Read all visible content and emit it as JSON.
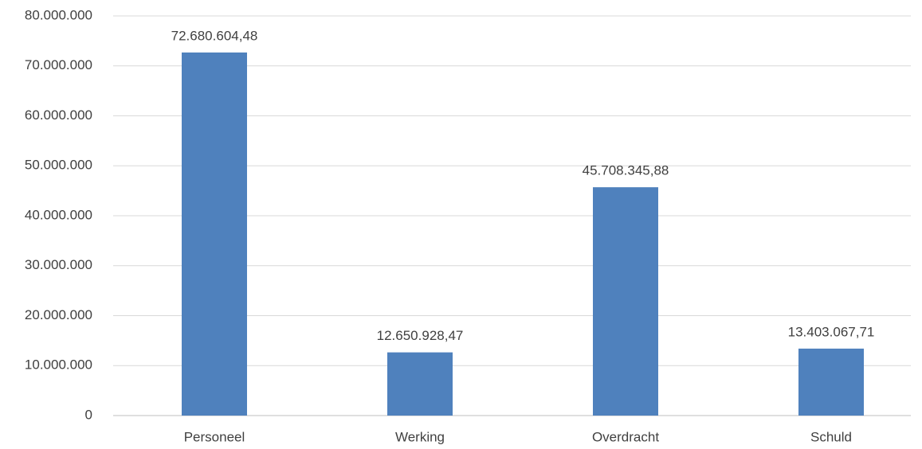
{
  "chart_data": {
    "type": "bar",
    "categories": [
      "Personeel",
      "Werking",
      "Overdracht",
      "Schuld"
    ],
    "values": [
      72680604.48,
      12650928.47,
      45708345.88,
      13403067.71
    ],
    "value_labels": [
      "72.680.604,48",
      "12.650.928,47",
      "45.708.345,88",
      "13.403.067,71"
    ],
    "color": "#4f81bd",
    "ylim": [
      0,
      80000000
    ],
    "yticks": [
      0,
      {
        "value": 10000000,
        "label": "10.000.000"
      },
      {
        "value": 20000000,
        "label": "20.000.000"
      },
      {
        "value": 30000000,
        "label": "30.000.000"
      },
      {
        "value": 40000000,
        "label": "40.000.000"
      },
      {
        "value": 50000000,
        "label": "50.000.000"
      },
      {
        "value": 60000000,
        "label": "60.000.000"
      },
      {
        "value": 70000000,
        "label": "70.000.000"
      },
      {
        "value": 80000000,
        "label": "80.000.000"
      }
    ],
    "grid": true
  }
}
